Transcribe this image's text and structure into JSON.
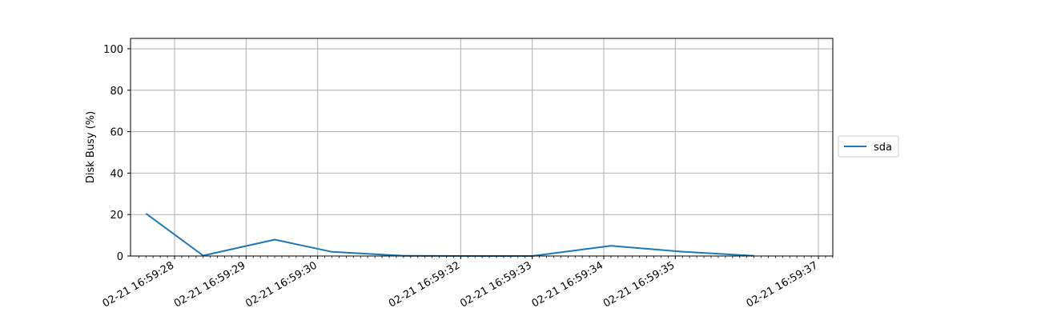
{
  "chart_data": {
    "type": "line",
    "ylabel": "Disk Busy (%)",
    "xlabel": "",
    "ylim": [
      0,
      105
    ],
    "grid": true,
    "legend_position": "right-outside",
    "x_tick_labels": [
      "02-21 16:59:28",
      "02-21 16:59:29",
      "02-21 16:59:30",
      "02-21 16:59:32",
      "02-21 16:59:33",
      "02-21 16:59:34",
      "02-21 16:59:35",
      "02-21 16:59:37"
    ],
    "y_ticks": [
      0,
      20,
      40,
      60,
      80,
      100
    ],
    "series": [
      {
        "name": "sda",
        "color": "#1f77b4",
        "x": [
          "02-21 16:59:27.6",
          "02-21 16:59:28.4",
          "02-21 16:59:29.4",
          "02-21 16:59:30.2",
          "02-21 16:59:31.2",
          "02-21 16:59:32.2",
          "02-21 16:59:33.0",
          "02-21 16:59:34.1",
          "02-21 16:59:35.1",
          "02-21 16:59:36.1"
        ],
        "values": [
          20.5,
          0.2,
          7.9,
          2.0,
          0.1,
          0.0,
          0.0,
          4.9,
          2.1,
          0.1
        ]
      }
    ]
  }
}
